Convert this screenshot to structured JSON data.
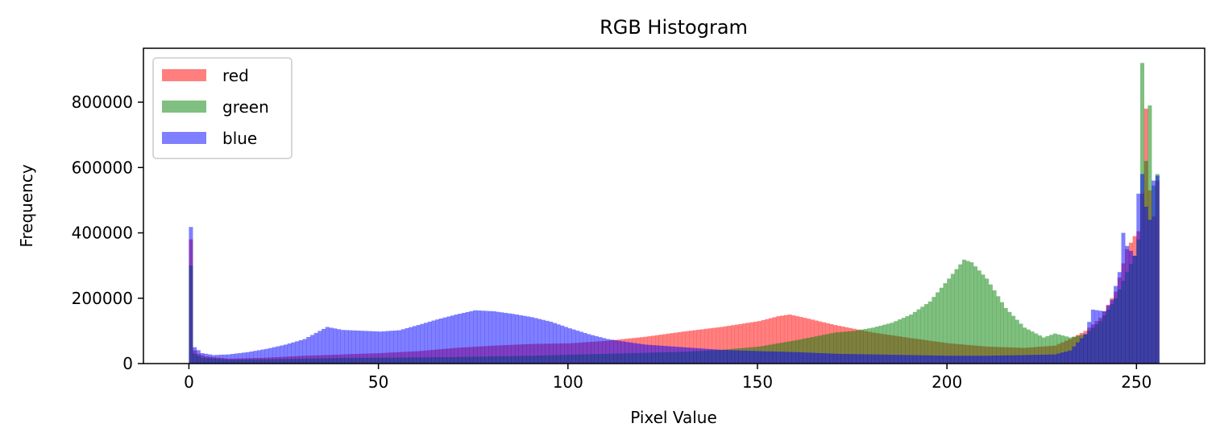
{
  "chart_data": {
    "type": "bar",
    "title": "RGB Histogram",
    "xlabel": "Pixel Value",
    "ylabel": "Frequency",
    "xlim": [
      -12,
      268
    ],
    "ylim": [
      0,
      965000
    ],
    "xticks": [
      0,
      50,
      100,
      150,
      200,
      250
    ],
    "yticks": [
      0,
      200000,
      400000,
      600000,
      800000
    ],
    "grid": false,
    "legend": "top-left",
    "bin_width": 1,
    "bar_opacity": 0.5,
    "series": [
      {
        "name": "red",
        "color": "#ff0000",
        "keypoints": [
          [
            0,
            380000
          ],
          [
            1,
            40000
          ],
          [
            2,
            30000
          ],
          [
            4,
            22000
          ],
          [
            10,
            15000
          ],
          [
            20,
            18000
          ],
          [
            30,
            24000
          ],
          [
            40,
            28000
          ],
          [
            50,
            32000
          ],
          [
            60,
            38000
          ],
          [
            70,
            48000
          ],
          [
            80,
            55000
          ],
          [
            90,
            60000
          ],
          [
            100,
            62000
          ],
          [
            110,
            70000
          ],
          [
            120,
            82000
          ],
          [
            130,
            98000
          ],
          [
            140,
            112000
          ],
          [
            150,
            130000
          ],
          [
            155,
            145000
          ],
          [
            158,
            150000
          ],
          [
            162,
            140000
          ],
          [
            170,
            118000
          ],
          [
            180,
            95000
          ],
          [
            190,
            78000
          ],
          [
            200,
            62000
          ],
          [
            210,
            52000
          ],
          [
            220,
            48000
          ],
          [
            228,
            55000
          ],
          [
            232,
            75000
          ],
          [
            236,
            100000
          ],
          [
            240,
            140000
          ],
          [
            244,
            220000
          ],
          [
            247,
            350000
          ],
          [
            249,
            390000
          ],
          [
            250,
            405000
          ],
          [
            251,
            520000
          ],
          [
            252,
            780000
          ],
          [
            253,
            530000
          ],
          [
            254,
            450000
          ],
          [
            255,
            560000
          ],
          [
            256,
            0
          ]
        ],
        "spikes": [
          [
            0,
            380000
          ],
          [
            252,
            780000
          ],
          [
            255,
            560000
          ]
        ]
      },
      {
        "name": "green",
        "color": "#008000",
        "keypoints": [
          [
            0,
            300000
          ],
          [
            1,
            30000
          ],
          [
            3,
            18000
          ],
          [
            10,
            12000
          ],
          [
            20,
            13000
          ],
          [
            30,
            15000
          ],
          [
            40,
            17000
          ],
          [
            50,
            18000
          ],
          [
            60,
            19000
          ],
          [
            70,
            20000
          ],
          [
            80,
            22000
          ],
          [
            90,
            24000
          ],
          [
            100,
            27000
          ],
          [
            110,
            30000
          ],
          [
            120,
            33000
          ],
          [
            130,
            36000
          ],
          [
            140,
            42000
          ],
          [
            150,
            52000
          ],
          [
            160,
            72000
          ],
          [
            170,
            95000
          ],
          [
            175,
            100000
          ],
          [
            180,
            110000
          ],
          [
            185,
            125000
          ],
          [
            190,
            150000
          ],
          [
            195,
            190000
          ],
          [
            200,
            260000
          ],
          [
            204,
            318000
          ],
          [
            206,
            310000
          ],
          [
            210,
            260000
          ],
          [
            215,
            170000
          ],
          [
            220,
            110000
          ],
          [
            225,
            80000
          ],
          [
            228,
            92000
          ],
          [
            232,
            80000
          ],
          [
            236,
            90000
          ],
          [
            240,
            130000
          ],
          [
            244,
            200000
          ],
          [
            247,
            280000
          ],
          [
            249,
            330000
          ],
          [
            250,
            380000
          ],
          [
            251,
            920000
          ],
          [
            252,
            620000
          ],
          [
            253,
            790000
          ],
          [
            254,
            545000
          ],
          [
            255,
            580000
          ],
          [
            256,
            0
          ]
        ],
        "spikes": [
          [
            251,
            920000
          ],
          [
            253,
            790000
          ],
          [
            252,
            620000
          ]
        ]
      },
      {
        "name": "blue",
        "color": "#0000ff",
        "keypoints": [
          [
            0,
            418000
          ],
          [
            1,
            50000
          ],
          [
            3,
            32000
          ],
          [
            6,
            26000
          ],
          [
            10,
            28000
          ],
          [
            15,
            35000
          ],
          [
            20,
            45000
          ],
          [
            25,
            58000
          ],
          [
            30,
            75000
          ],
          [
            34,
            100000
          ],
          [
            36,
            112000
          ],
          [
            40,
            103000
          ],
          [
            50,
            98000
          ],
          [
            55,
            102000
          ],
          [
            60,
            118000
          ],
          [
            65,
            135000
          ],
          [
            70,
            150000
          ],
          [
            75,
            163000
          ],
          [
            80,
            160000
          ],
          [
            85,
            152000
          ],
          [
            90,
            142000
          ],
          [
            95,
            128000
          ],
          [
            100,
            108000
          ],
          [
            105,
            90000
          ],
          [
            110,
            75000
          ],
          [
            115,
            66000
          ],
          [
            120,
            58000
          ],
          [
            130,
            50000
          ],
          [
            140,
            42000
          ],
          [
            150,
            38000
          ],
          [
            160,
            35000
          ],
          [
            170,
            30000
          ],
          [
            180,
            28000
          ],
          [
            190,
            26000
          ],
          [
            200,
            24000
          ],
          [
            210,
            24000
          ],
          [
            220,
            26000
          ],
          [
            228,
            28000
          ],
          [
            232,
            40000
          ],
          [
            236,
            90000
          ],
          [
            238,
            165000
          ],
          [
            241,
            160000
          ],
          [
            243,
            195000
          ],
          [
            245,
            280000
          ],
          [
            246,
            400000
          ],
          [
            247,
            360000
          ],
          [
            249,
            330000
          ],
          [
            250,
            520000
          ],
          [
            251,
            580000
          ],
          [
            252,
            480000
          ],
          [
            253,
            440000
          ],
          [
            254,
            560000
          ],
          [
            255,
            575000
          ],
          [
            256,
            0
          ]
        ],
        "spikes": [
          [
            0,
            418000
          ],
          [
            246,
            400000
          ],
          [
            251,
            580000
          ],
          [
            255,
            575000
          ]
        ]
      }
    ]
  }
}
